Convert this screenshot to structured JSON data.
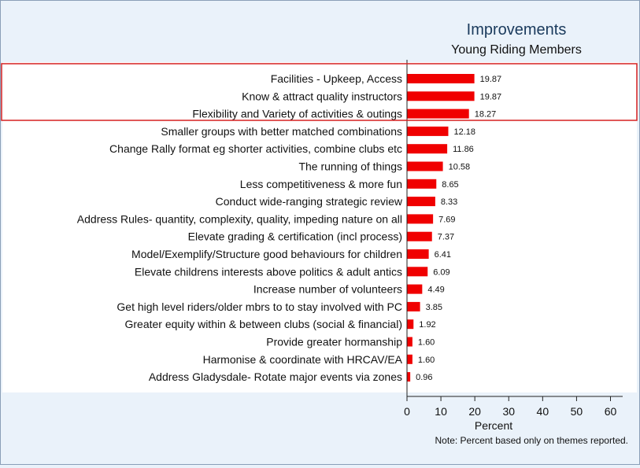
{
  "chart_data": {
    "type": "bar",
    "orientation": "horizontal",
    "title": "Improvements",
    "subtitle": "Young Riding Members",
    "xlabel": "Percent",
    "note": "Note: Percent based only on themes reported.",
    "xlim": [
      0,
      60
    ],
    "xticks": [
      "0",
      "10",
      "20",
      "30",
      "40",
      "50",
      "60"
    ],
    "categories": [
      "Facilities - Upkeep, Access",
      "Know & attract quality instructors",
      "Flexibility and Variety of activities & outings",
      "Smaller groups with better matched combinations",
      "Change Rally format eg shorter activities, combine clubs etc",
      "The running of things",
      "Less competitiveness & more fun",
      "Conduct wide-ranging strategic review",
      "Address Rules- quantity, complexity, quality, impeding nature on all",
      "Elevate grading & certification (incl process)",
      "Model/Exemplify/Structure good behaviours for children",
      "Elevate childrens interests above politics & adult antics",
      "Increase number of volunteers",
      "Get high level riders/older mbrs to to stay involved with PC",
      "Greater equity within & between clubs (social & financial)",
      "Provide greater hormanship",
      "Harmonise & coordinate with HRCAV/EA",
      "Address Gladysdale- Rotate major events via zones"
    ],
    "values": [
      19.87,
      19.87,
      18.27,
      12.18,
      11.86,
      10.58,
      8.65,
      8.33,
      7.69,
      7.37,
      6.41,
      6.09,
      4.49,
      3.85,
      1.92,
      1.6,
      1.6,
      0.96
    ],
    "value_labels": [
      "19.87",
      "19.87",
      "18.27",
      "12.18",
      "11.86",
      "10.58",
      "8.65",
      "8.33",
      "7.69",
      "7.37",
      "6.41",
      "6.09",
      "4.49",
      "3.85",
      "1.92",
      "1.60",
      "1.60",
      "0.96"
    ],
    "highlighted_categories": [
      0,
      1,
      2
    ],
    "colors": {
      "bar": "#f00000",
      "highlight_box": "#d62020",
      "axis": "#222222",
      "background": "#eaf2fa",
      "title": "#1a3a5c"
    }
  }
}
